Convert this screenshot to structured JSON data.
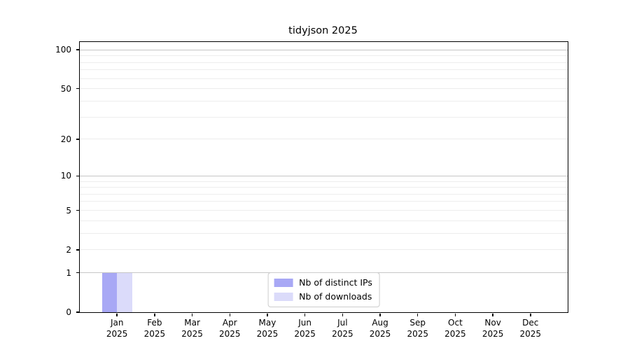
{
  "chart_data": {
    "type": "bar",
    "title": "tidyjson 2025",
    "categories": [
      "Jan",
      "Feb",
      "Mar",
      "Apr",
      "May",
      "Jun",
      "Jul",
      "Aug",
      "Sep",
      "Oct",
      "Nov",
      "Dec"
    ],
    "category_year": "2025",
    "series": [
      {
        "name": "Nb of distinct IPs",
        "color": "#a8a8f5",
        "values": [
          1,
          0,
          0,
          0,
          0,
          0,
          0,
          0,
          0,
          0,
          0,
          0
        ]
      },
      {
        "name": "Nb of downloads",
        "color": "#dbdbfa",
        "values": [
          1,
          0,
          0,
          0,
          0,
          0,
          0,
          0,
          0,
          0,
          0,
          0
        ]
      }
    ],
    "yscale": "log1p",
    "ylim": [
      0,
      115
    ],
    "yticks": [
      0,
      1,
      2,
      5,
      10,
      20,
      50,
      100
    ],
    "major_gridlines": [
      1,
      10,
      100
    ],
    "minor_gridlines": [
      2,
      3,
      4,
      5,
      6,
      7,
      8,
      9,
      20,
      30,
      40,
      50,
      60,
      70,
      80,
      90
    ],
    "grid": "horizontal",
    "legend_position": "lower center",
    "colors": {
      "grid_major": "#c6c6c6",
      "grid_minor": "#ededed",
      "axis": "#000000",
      "text": "#000000",
      "legend_border": "#cccccc",
      "legend_bg": "#ffffff"
    }
  }
}
